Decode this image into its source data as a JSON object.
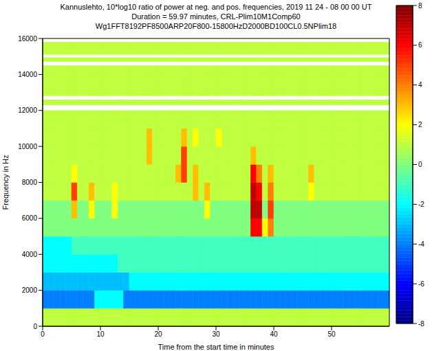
{
  "chart_data": {
    "type": "heatmap",
    "title": [
      "Kannuslehto, 10*log10 ratio of power at neg. and pos. frequencies, 2019 11 24 - 08 00 00 UT",
      "Duration = 59.97 minutes,  CRL-Plim10M1Comp60",
      "Wg1FFT8192PF8500ARP20F800-15800HzD2000BD100CL0.5NPlim18"
    ],
    "x_label": "Time from the start time in minutes",
    "y_label": "Frequency in Hz",
    "xlim": [
      0,
      60
    ],
    "xticks": [
      0,
      10,
      20,
      30,
      40,
      50
    ],
    "ylim": [
      0,
      16000
    ],
    "yticks": [
      0,
      2000,
      4000,
      6000,
      8000,
      10000,
      12000,
      14000,
      16000
    ],
    "x_bins": [
      0,
      1,
      2,
      3,
      4,
      5,
      6,
      7,
      8,
      9,
      10,
      11,
      12,
      13,
      14,
      15,
      16,
      17,
      18,
      19,
      20,
      21,
      22,
      23,
      24,
      25,
      26,
      27,
      28,
      29,
      30,
      31,
      32,
      33,
      34,
      35,
      36,
      37,
      38,
      39,
      40,
      41,
      42,
      43,
      44,
      45,
      46,
      47,
      48,
      49,
      50,
      51,
      52,
      53,
      54,
      55,
      56,
      57,
      58,
      59,
      60
    ],
    "y_bins": [
      0,
      1000,
      2000,
      3000,
      4000,
      5000,
      6000,
      7000,
      8000,
      9000,
      10000,
      11000,
      12000,
      13000,
      14000,
      15000,
      16000
    ],
    "cells": [
      [
        1,
        1,
        1,
        1,
        1,
        1,
        1,
        1,
        1,
        1,
        1,
        1,
        1,
        1,
        1,
        1,
        1,
        1,
        1,
        1,
        1,
        1,
        1,
        1,
        1,
        1,
        1,
        1,
        1,
        1,
        1,
        1,
        1,
        1,
        1,
        1,
        1,
        1,
        1,
        1,
        1,
        1,
        1,
        1,
        1,
        1,
        1,
        1,
        1,
        1,
        1,
        1,
        1,
        1,
        1,
        1,
        1,
        1,
        1,
        1
      ],
      [
        -4,
        -4,
        -4,
        -4,
        -4,
        -4,
        -4,
        -4,
        -4,
        -2,
        -2,
        -2,
        -2,
        -2,
        -4,
        -4,
        -4,
        -4,
        -4,
        -4,
        -4,
        -4,
        -4,
        -4,
        -4,
        -4,
        -4,
        -4,
        -4,
        -4,
        -4,
        -4,
        -4,
        -4,
        -4,
        -4,
        -4,
        -4,
        -4,
        -4,
        -4,
        -4,
        -4,
        -4,
        -4,
        -4,
        -4,
        -4,
        -4,
        -4,
        -4,
        -4,
        -4,
        -4,
        -4,
        -4,
        -4,
        -4,
        -4,
        -4
      ],
      [
        -3,
        -3,
        -3,
        -3,
        -3,
        -3,
        -3,
        -3,
        -3,
        -3,
        -3,
        -3,
        -3,
        -3,
        -3,
        -2,
        -2,
        -2,
        -2,
        -2,
        -2,
        -2,
        -2,
        -2,
        -2,
        -2,
        -2,
        -2,
        -2,
        -2,
        -2,
        -2,
        -2,
        -2,
        -2,
        -2,
        -2,
        -2,
        -2,
        -2,
        -2,
        -2,
        -2,
        -2,
        -2,
        -2,
        -2,
        -2,
        -2,
        -2,
        -2,
        -2,
        -2,
        -2,
        -2,
        -2,
        -2,
        -2,
        -2,
        -2
      ],
      [
        -2,
        -2,
        -2,
        -2,
        -2,
        -2,
        -2,
        -2,
        -2,
        -2,
        -2,
        -2,
        -2,
        -1,
        -1,
        -1,
        -1,
        -1,
        -1,
        -1,
        -1,
        -1,
        -1,
        -1,
        -1,
        -1,
        -1,
        -1,
        -1,
        -1,
        -1,
        -1,
        -1,
        -1,
        -1,
        -1,
        -1,
        -1,
        -1,
        -1,
        -1,
        -1,
        -1,
        -1,
        -1,
        -1,
        -1,
        -1,
        -1,
        -1,
        -1,
        -1,
        -1,
        -1,
        -1,
        -1,
        -1,
        -1,
        -1,
        -1
      ],
      [
        -2,
        -2,
        -2,
        -2,
        -2,
        -1,
        -1,
        -1,
        -1,
        -1,
        -1,
        -1,
        -1,
        -1,
        -1,
        -1,
        -1,
        -1,
        -1,
        -1,
        -1,
        -1,
        -1,
        -1,
        -1,
        -1,
        -1,
        -1,
        -1,
        -1,
        -1,
        -1,
        -1,
        -1,
        -1,
        -1,
        -1,
        -1,
        -1,
        -1,
        -1,
        -1,
        -1,
        -1,
        -1,
        -1,
        -1,
        -1,
        -1,
        -1,
        -1,
        -1,
        -1,
        -1,
        -1,
        -1,
        -1,
        -1,
        -1,
        -1
      ],
      [
        0,
        0,
        0,
        0,
        0,
        0,
        0,
        0,
        0,
        0,
        0,
        0,
        0,
        0,
        0,
        0,
        0,
        0,
        0,
        0,
        0,
        0,
        0,
        0,
        0,
        0,
        0,
        0,
        0,
        0,
        0,
        0,
        0,
        0,
        0,
        0,
        6,
        6,
        2,
        4,
        0,
        0,
        0,
        0,
        0,
        0,
        0,
        0,
        0,
        0,
        0,
        0,
        0,
        0,
        0,
        0,
        0,
        0,
        0,
        0
      ],
      [
        0,
        0,
        0,
        0,
        0,
        3,
        0,
        0,
        2,
        0,
        0,
        0,
        2,
        0,
        0,
        0,
        0,
        0,
        0,
        0,
        0,
        0,
        0,
        0,
        0,
        0,
        0,
        0,
        2,
        0,
        0,
        0,
        0,
        0,
        0,
        0,
        7,
        7,
        0,
        5,
        0,
        0,
        0,
        0,
        0,
        0,
        0,
        0,
        0,
        0,
        0,
        0,
        0,
        0,
        0,
        0,
        0,
        0,
        0,
        0
      ],
      [
        1,
        1,
        1,
        1,
        1,
        5,
        1,
        1,
        3,
        1,
        1,
        1,
        2,
        1,
        1,
        1,
        1,
        1,
        1,
        1,
        1,
        1,
        1,
        1,
        1,
        1,
        3,
        1,
        3,
        1,
        1,
        1,
        1,
        1,
        1,
        1,
        7,
        6,
        1,
        4,
        1,
        1,
        1,
        1,
        1,
        1,
        2,
        1,
        1,
        1,
        1,
        1,
        1,
        1,
        1,
        1,
        1,
        1,
        1,
        1
      ],
      [
        1,
        1,
        1,
        1,
        1,
        2,
        1,
        1,
        1,
        1,
        1,
        1,
        1,
        1,
        1,
        1,
        1,
        1,
        1,
        1,
        1,
        1,
        1,
        3,
        5,
        1,
        3,
        1,
        1,
        1,
        1,
        1,
        1,
        1,
        1,
        1,
        6,
        4,
        1,
        3,
        1,
        1,
        1,
        1,
        1,
        1,
        3,
        1,
        1,
        1,
        1,
        1,
        1,
        1,
        1,
        1,
        1,
        1,
        1,
        1
      ],
      [
        1,
        1,
        1,
        1,
        1,
        1,
        1,
        1,
        1,
        1,
        1,
        1,
        1,
        1,
        1,
        1,
        1,
        1,
        3,
        1,
        1,
        1,
        1,
        1,
        5,
        1,
        1,
        1,
        1,
        1,
        1,
        1,
        1,
        1,
        1,
        1,
        3,
        1,
        1,
        1,
        1,
        1,
        1,
        1,
        1,
        1,
        1,
        1,
        1,
        1,
        1,
        1,
        1,
        1,
        1,
        1,
        1,
        1,
        1,
        1
      ],
      [
        1,
        1,
        1,
        1,
        1,
        1,
        1,
        1,
        1,
        1,
        1,
        1,
        1,
        1,
        1,
        1,
        1,
        1,
        3,
        1,
        1,
        1,
        1,
        1,
        3,
        1,
        2,
        1,
        1,
        1,
        2,
        1,
        1,
        1,
        1,
        1,
        1,
        1,
        1,
        1,
        1,
        1,
        1,
        1,
        1,
        1,
        1,
        1,
        1,
        1,
        1,
        1,
        1,
        1,
        1,
        1,
        1,
        1,
        1,
        1
      ],
      [
        1,
        1,
        1,
        1,
        1,
        1,
        1,
        1,
        1,
        1,
        1,
        1,
        1,
        1,
        1,
        1,
        1,
        1,
        1,
        1,
        1,
        1,
        1,
        1,
        1,
        1,
        1,
        1,
        1,
        1,
        1,
        1,
        1,
        1,
        1,
        1,
        1,
        1,
        1,
        1,
        1,
        1,
        1,
        1,
        1,
        1,
        1,
        1,
        1,
        1,
        1,
        1,
        1,
        1,
        1,
        1,
        1,
        1,
        1,
        1
      ],
      [
        1,
        1,
        1,
        1,
        1,
        1,
        1,
        1,
        1,
        1,
        1,
        1,
        1,
        1,
        1,
        1,
        1,
        1,
        1,
        1,
        1,
        1,
        1,
        1,
        1,
        1,
        1,
        1,
        1,
        1,
        1,
        1,
        1,
        1,
        1,
        1,
        1,
        1,
        1,
        1,
        1,
        1,
        1,
        1,
        1,
        1,
        1,
        1,
        1,
        1,
        1,
        1,
        1,
        1,
        1,
        1,
        1,
        1,
        1,
        1
      ],
      [
        1,
        1,
        1,
        1,
        1,
        1,
        1,
        1,
        1,
        1,
        1,
        1,
        1,
        1,
        1,
        1,
        1,
        1,
        1,
        1,
        1,
        1,
        1,
        1,
        1,
        1,
        1,
        1,
        1,
        1,
        1,
        1,
        1,
        1,
        1,
        1,
        1,
        1,
        1,
        1,
        1,
        1,
        1,
        1,
        1,
        1,
        1,
        1,
        1,
        1,
        1,
        1,
        1,
        1,
        1,
        1,
        1,
        1,
        1,
        1
      ],
      [
        1,
        1,
        1,
        1,
        1,
        1,
        1,
        1,
        1,
        1,
        1,
        1,
        1,
        1,
        1,
        1,
        1,
        1,
        1,
        1,
        1,
        1,
        1,
        1,
        1,
        1,
        1,
        1,
        1,
        1,
        1,
        1,
        1,
        1,
        1,
        1,
        1,
        1,
        1,
        1,
        1,
        1,
        1,
        1,
        1,
        1,
        1,
        1,
        1,
        1,
        1,
        1,
        1,
        1,
        1,
        1,
        1,
        1,
        1,
        1
      ],
      [
        1,
        1,
        1,
        1,
        1,
        1,
        1,
        1,
        1,
        1,
        1,
        1,
        1,
        1,
        1,
        1,
        1,
        1,
        1,
        1,
        1,
        1,
        1,
        1,
        1,
        1,
        1,
        1,
        1,
        1,
        1,
        1,
        1,
        1,
        1,
        1,
        1,
        1,
        1,
        1,
        1,
        1,
        1,
        1,
        1,
        1,
        1,
        1,
        1,
        1,
        1,
        1,
        1,
        1,
        1,
        1,
        1,
        1,
        1,
        1
      ]
    ],
    "blank_bands": [
      [
        12000,
        12300
      ],
      [
        12600,
        12800
      ],
      [
        14500,
        14700
      ],
      [
        14950,
        15100
      ],
      [
        15800,
        16000
      ]
    ],
    "colorbar": {
      "range": [
        -8,
        8
      ],
      "ticks": [
        -8,
        -6,
        -4,
        -2,
        0,
        2,
        4,
        6,
        8
      ]
    }
  }
}
